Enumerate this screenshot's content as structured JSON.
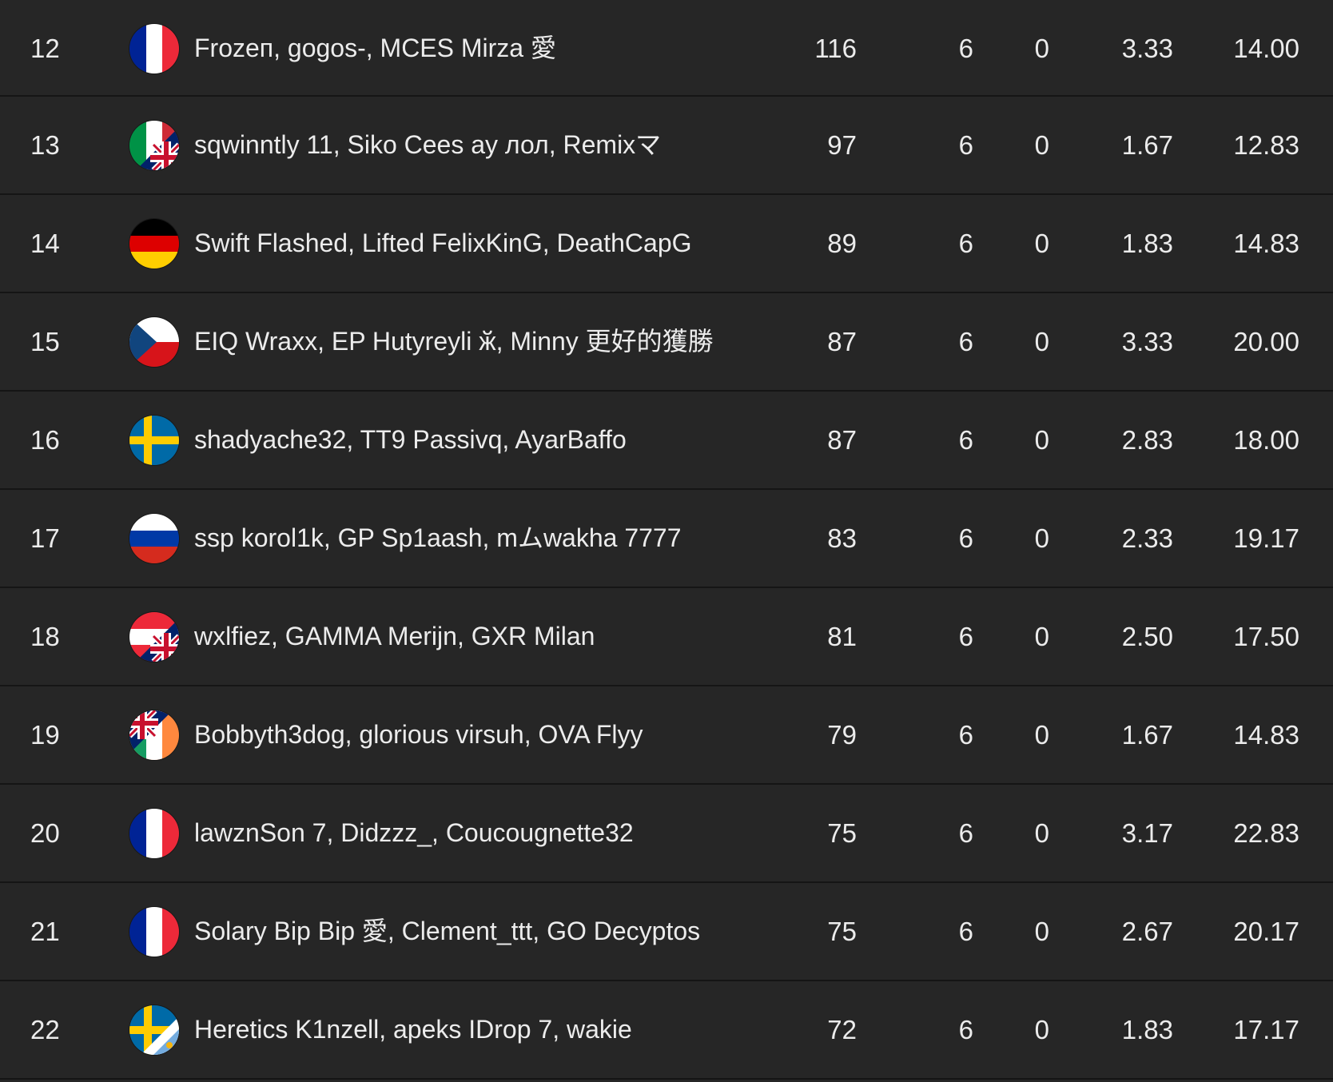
{
  "rows": [
    {
      "rank": "12",
      "flag": "france-flag-icon",
      "flag_colors": [
        "#002395",
        "#ffffff",
        "#ed2939"
      ],
      "players": "Frozeп, gogos-, MCES Mirza 愛",
      "points": "116",
      "played": "6",
      "zero": "0",
      "ratio": "3.33",
      "avg": "14.00"
    },
    {
      "rank": "13",
      "flag": "italy-uk-split-flag-icon",
      "flag_colors": [
        "#009246",
        "#ffffff",
        "#ce2b37",
        "#012169",
        "#c8102e"
      ],
      "players": "sqwinntly 11, Siko Cees ay лол, Remixマ",
      "points": "97",
      "played": "6",
      "zero": "0",
      "ratio": "1.67",
      "avg": "12.83"
    },
    {
      "rank": "14",
      "flag": "germany-flag-icon",
      "flag_colors": [
        "#000000",
        "#dd0000",
        "#ffce00"
      ],
      "players": "Swift Flashed, Lifted FelixKinG, DeathCapG",
      "points": "89",
      "played": "6",
      "zero": "0",
      "ratio": "1.83",
      "avg": "14.83"
    },
    {
      "rank": "15",
      "flag": "czech-flag-icon",
      "flag_colors": [
        "#ffffff",
        "#d7141a",
        "#11457e"
      ],
      "players": "EIQ Wraxx, EP Hutyreyli ӂ, Minny 更好的獲勝",
      "points": "87",
      "played": "6",
      "zero": "0",
      "ratio": "3.33",
      "avg": "20.00"
    },
    {
      "rank": "16",
      "flag": "sweden-flag-icon",
      "flag_colors": [
        "#006aa7",
        "#fecc00"
      ],
      "players": "shadyache32, TT9 Passivq, AyarBaffo",
      "points": "87",
      "played": "6",
      "zero": "0",
      "ratio": "2.83",
      "avg": "18.00"
    },
    {
      "rank": "17",
      "flag": "russia-flag-icon",
      "flag_colors": [
        "#ffffff",
        "#0039a6",
        "#d52b1e"
      ],
      "players": "ssp korol1k, GP Sp1aash, mムwakha 7777",
      "points": "83",
      "played": "6",
      "zero": "0",
      "ratio": "2.33",
      "avg": "19.17"
    },
    {
      "rank": "18",
      "flag": "austria-uk-split-flag-icon",
      "flag_colors": [
        "#ed2939",
        "#ffffff",
        "#012169",
        "#c8102e"
      ],
      "players": "wxlfiez, GAMMA Merijn, GXR Milan",
      "points": "81",
      "played": "6",
      "zero": "0",
      "ratio": "2.50",
      "avg": "17.50"
    },
    {
      "rank": "19",
      "flag": "uk-ireland-split-flag-icon",
      "flag_colors": [
        "#012169",
        "#c8102e",
        "#169b62",
        "#ffffff",
        "#ff883e"
      ],
      "players": "Bobbyth3dog, glorious virsuh, OVA Flyy",
      "points": "79",
      "played": "6",
      "zero": "0",
      "ratio": "1.67",
      "avg": "14.83"
    },
    {
      "rank": "20",
      "flag": "france-flag-icon",
      "flag_colors": [
        "#002395",
        "#ffffff",
        "#ed2939"
      ],
      "players": "lawznSon 7, Didzzz_, Coucougnette32",
      "points": "75",
      "played": "6",
      "zero": "0",
      "ratio": "3.17",
      "avg": "22.83"
    },
    {
      "rank": "21",
      "flag": "france-flag-icon",
      "flag_colors": [
        "#002395",
        "#ffffff",
        "#ed2939"
      ],
      "players": "Solary Bip Bip 愛, Clement_ttt, GO Decyptos",
      "points": "75",
      "played": "6",
      "zero": "0",
      "ratio": "2.67",
      "avg": "20.17"
    },
    {
      "rank": "22",
      "flag": "sweden-argentina-split-flag-icon",
      "flag_colors": [
        "#006aa7",
        "#fecc00",
        "#74acdf",
        "#ffffff",
        "#f6b40e"
      ],
      "players": "Heretics K1nzell, apeks IDrop 7, wakie",
      "points": "72",
      "played": "6",
      "zero": "0",
      "ratio": "1.83",
      "avg": "17.17"
    }
  ]
}
